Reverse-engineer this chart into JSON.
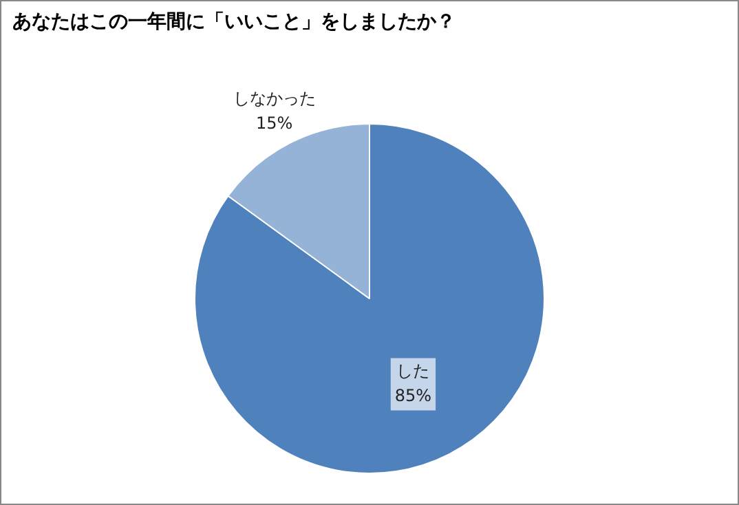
{
  "chart_data": {
    "type": "pie",
    "title": "あなたはこの一年間に「いいこと」をしましたか？",
    "categories": [
      "した",
      "しなかった"
    ],
    "values": [
      85,
      15
    ],
    "value_labels": [
      "85%",
      "15%"
    ],
    "colors": [
      "#4f81bd",
      "#95b3d7"
    ],
    "legend": false
  }
}
